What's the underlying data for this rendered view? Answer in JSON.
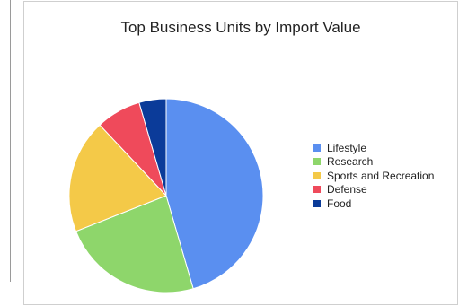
{
  "chart_data": {
    "type": "pie",
    "title": "Top Business Units by Import Value",
    "legend_position": "right",
    "slices": [
      {
        "label": "Lifestyle",
        "value": 45.5,
        "color": "#5a8ff0"
      },
      {
        "label": "Research",
        "value": 23.5,
        "color": "#8ed66b"
      },
      {
        "label": "Sports and Recreation",
        "value": 19.0,
        "color": "#f4c948"
      },
      {
        "label": "Defense",
        "value": 7.5,
        "color": "#ef4a5b"
      },
      {
        "label": "Food",
        "value": 4.5,
        "color": "#0b3b99"
      }
    ]
  }
}
